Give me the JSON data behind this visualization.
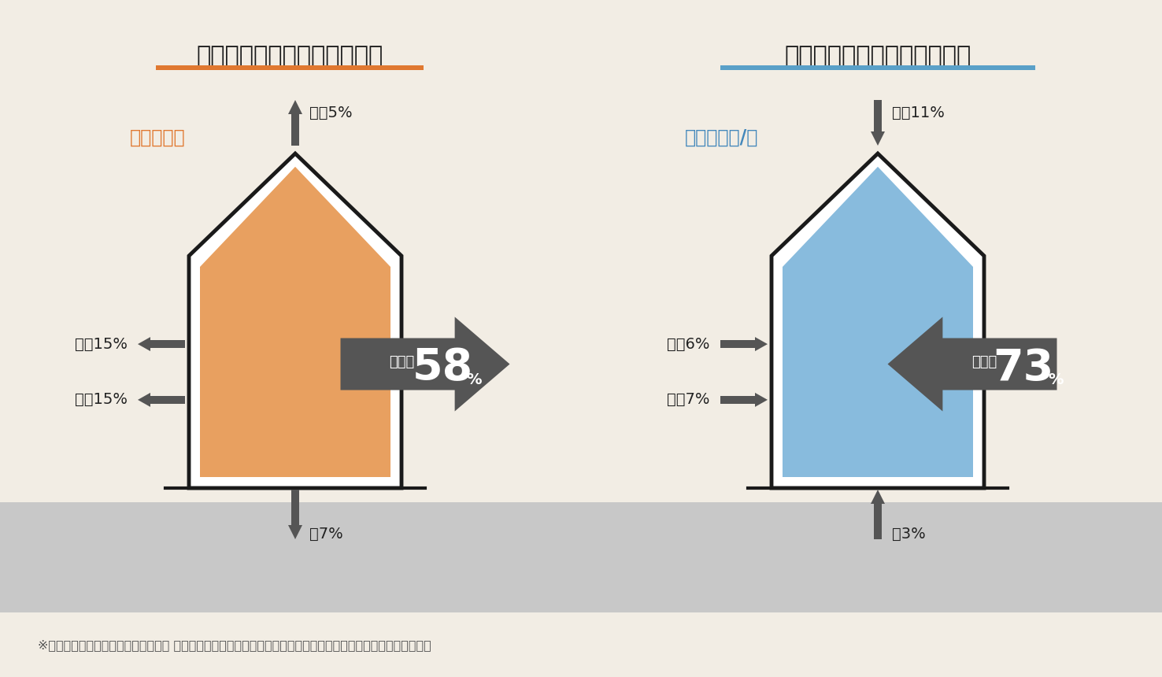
{
  "bg_color": "#f2ede4",
  "ground_color": "#c8c8c8",
  "title_left": "室内から外に熱が逃げる割合",
  "title_right": "外の熱が室内に入り込む割合",
  "title_underline_left": "#e07830",
  "title_underline_right": "#5aa0c8",
  "season_label_left": "冬の暖房時",
  "season_label_right": "夏の冷房時/昼",
  "season_color_left": "#e07830",
  "season_color_right": "#4488bb",
  "house_fill_left": "#e8a060",
  "house_fill_right": "#88bbdd",
  "house_outline": "#1a1a1a",
  "arrow_color": "#555555",
  "big_arrow_color": "#555555",
  "roof_label_left": "屋栶5%",
  "roof_label_right": "屋栶11%",
  "ventilation_label_left": "換気15%",
  "ventilation_label_right": "換気6%",
  "wall_label_left": "外壁15%",
  "wall_label_right": "外壁7%",
  "floor_label_left": "幊7%",
  "floor_label_right": "幊3%",
  "opening_label_left": "開口部",
  "opening_label_right": "開口部",
  "opening_pct_left": "58",
  "opening_pct_right": "73",
  "footnote": "※出典：日本建材・住宅設備産業協会 省エネルギー建材普及促進センター「省エネ建材で、快適な家、健康な家」"
}
